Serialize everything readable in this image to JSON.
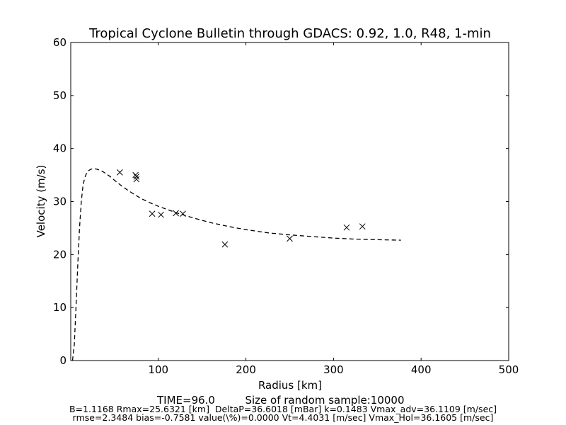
{
  "chart_data": {
    "type": "scatter",
    "title": "Tropical Cyclone Bulletin through GDACS: 0.92, 1.0, R48, 1-min",
    "xlabel": "Radius [km]",
    "ylabel": "Velocity (m/s)",
    "xlim": [
      0,
      500
    ],
    "ylim": [
      0,
      60
    ],
    "xticks": [
      100,
      200,
      300,
      400,
      500
    ],
    "yticks": [
      0,
      10,
      20,
      30,
      40,
      50,
      60
    ],
    "grid": false,
    "series": [
      {
        "marker": "x",
        "x": [
          56,
          74,
          75,
          75,
          93,
          103,
          120,
          128,
          176,
          250,
          315,
          333
        ],
        "y": [
          35.5,
          35.0,
          34.7,
          34.2,
          27.7,
          27.5,
          27.8,
          27.7,
          21.9,
          23.0,
          25.1,
          25.3
        ]
      },
      {
        "style": "dashed",
        "x": [
          2,
          4,
          6,
          8,
          10,
          12,
          14,
          16,
          18,
          20,
          23,
          26,
          30,
          35,
          40,
          45,
          50,
          60,
          70,
          80,
          90,
          100,
          120,
          140,
          160,
          180,
          200,
          225,
          250,
          275,
          300,
          325,
          350,
          377
        ],
        "y": [
          0,
          3,
          10,
          18,
          25,
          30,
          33,
          34.5,
          35.3,
          35.8,
          36.1,
          36.2,
          36.1,
          35.8,
          35.3,
          34.7,
          34.0,
          32.7,
          31.6,
          30.6,
          29.8,
          29.1,
          27.9,
          26.9,
          26.0,
          25.3,
          24.7,
          24.1,
          23.7,
          23.4,
          23.1,
          22.9,
          22.8,
          22.7
        ]
      }
    ]
  },
  "footer": {
    "time_text": "TIME=96.0",
    "sample_text": "Size of random sample:10000",
    "stats_line1": "B=1.1168 Rmax=25.6321 [km]  DeltaP=36.6018 [mBar] k=0.1483 Vmax_adv=36.1109 [m/sec]",
    "stats_line2": "rmse=2.3484 bias=-0.7581 value(\\%)=0.0000 Vt=4.4031 [m/sec] Vmax_Hol=36.1605 [m/sec]"
  }
}
